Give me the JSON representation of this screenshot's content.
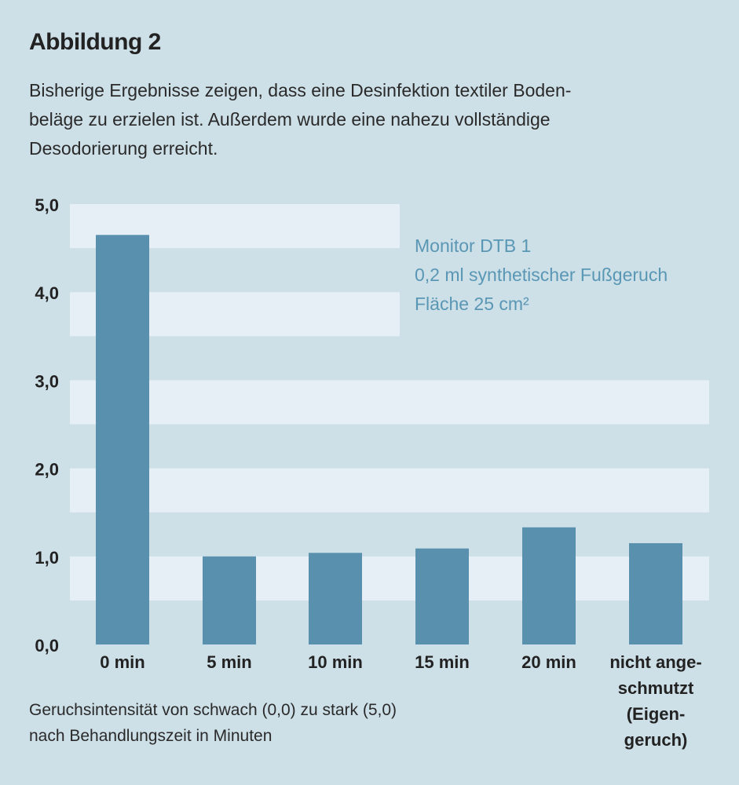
{
  "figure": {
    "title": "Abbildung 2",
    "description_lines": [
      "Bisherige Ergebnisse zeigen, dass eine Desinfektion textiler Boden-",
      "beläge zu erzielen ist. Außerdem wurde eine nahezu vollständige",
      "Desodorierung erreicht."
    ],
    "caption_lines": [
      "Geruchsintensität von schwach (0,0) zu stark (5,0)",
      "nach Behandlungszeit in Minuten"
    ]
  },
  "colors": {
    "background": "#cddfe7",
    "band": "#e6eff5",
    "bar": "#5890ad",
    "annotation": "#5a97b5",
    "text": "#222222"
  },
  "chart_data": {
    "type": "bar",
    "title": "Abbildung 2",
    "xlabel": "Behandlungszeit in Minuten",
    "ylabel": "Geruchsintensität von schwach (0,0) zu stark (5,0)",
    "ylim": [
      0,
      5
    ],
    "yticks": [
      0,
      1,
      2,
      3,
      4,
      5
    ],
    "ytick_labels": [
      "0,0",
      "1,0",
      "2,0",
      "3,0",
      "4,0",
      "5,0"
    ],
    "categories": [
      "0 min",
      "5 min",
      "10 min",
      "15 min",
      "20 min",
      "nicht ange-schmutzt (Eigen-geruch)"
    ],
    "category_label_lines": [
      [
        "0 min"
      ],
      [
        "5 min"
      ],
      [
        "10 min"
      ],
      [
        "15 min"
      ],
      [
        "20 min"
      ],
      [
        "nicht ange-",
        "schmutzt",
        "(Eigen-",
        "geruch)"
      ]
    ],
    "values": [
      4.65,
      1.0,
      1.04,
      1.09,
      1.33,
      1.15
    ],
    "grid": "alternating horizontal bands",
    "annotation": {
      "lines": [
        "Monitor DTB 1",
        "0,2 ml synthetischer Fußgeruch",
        "Fläche 25 cm²"
      ],
      "placement": "top-right"
    }
  }
}
